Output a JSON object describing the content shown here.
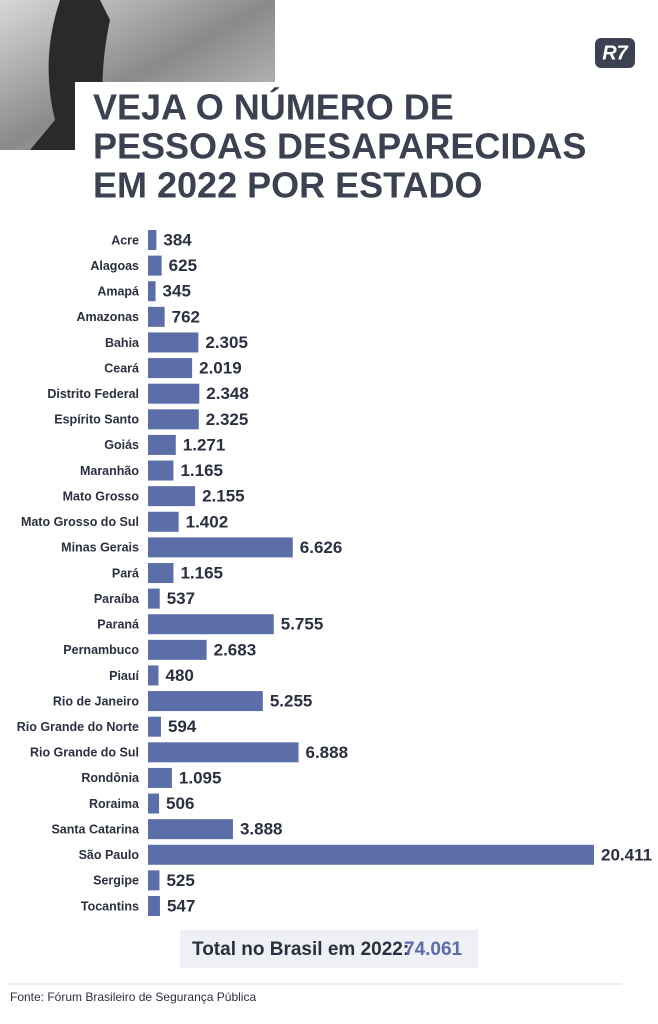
{
  "chart_data": {
    "type": "bar",
    "orientation": "horizontal",
    "title_lines": [
      "VEJA O NÚMERO DE",
      "PESSOAS DESAPARECIDAS",
      "EM 2022 POR ESTADO"
    ],
    "logo": "R7",
    "categories": [
      "Acre",
      "Alagoas",
      "Amapá",
      "Amazonas",
      "Bahia",
      "Ceará",
      "Distrito Federal",
      "Espírito Santo",
      "Goiás",
      "Maranhão",
      "Mato Grosso",
      "Mato Grosso do Sul",
      "Minas Gerais",
      "Pará",
      "Paraíba",
      "Paraná",
      "Pernambuco",
      "Piauí",
      "Rio de Janeiro",
      "Rio Grande do Norte",
      "Rio Grande do Sul",
      "Rondônia",
      "Roraima",
      "Santa Catarina",
      "São Paulo",
      "Sergipe",
      "Tocantins"
    ],
    "values": [
      384,
      625,
      345,
      762,
      2305,
      2019,
      2348,
      2325,
      1271,
      1165,
      2155,
      1402,
      6626,
      1165,
      537,
      5755,
      2683,
      480,
      5255,
      594,
      6888,
      1095,
      506,
      3888,
      20411,
      525,
      547
    ],
    "value_labels": [
      "384",
      "625",
      "345",
      "762",
      "2.305",
      "2.019",
      "2.348",
      "2.325",
      "1.271",
      "1.165",
      "2.155",
      "1.402",
      "6.626",
      "1.165",
      "537",
      "5.755",
      "2.683",
      "480",
      "5.255",
      "594",
      "6.888",
      "1.095",
      "506",
      "3.888",
      "20.411",
      "525",
      "547"
    ],
    "color": "#5b6ea8",
    "total": {
      "label": "Total no Brasil em 2022:",
      "value": 74061,
      "value_label": "74.061"
    },
    "source": "Fonte: Fórum Brasileiro de Segurança Pública"
  }
}
